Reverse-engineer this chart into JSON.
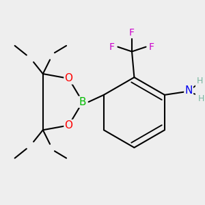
{
  "background_color": "#eeeeee",
  "atom_colors": {
    "C": "#000000",
    "H": "#7ab5a0",
    "B": "#00bb00",
    "O": "#ff0000",
    "N": "#0000ee",
    "F": "#cc00cc"
  },
  "bond_color": "#000000",
  "bond_width": 1.5,
  "figsize": [
    3.0,
    3.0
  ],
  "dpi": 100
}
